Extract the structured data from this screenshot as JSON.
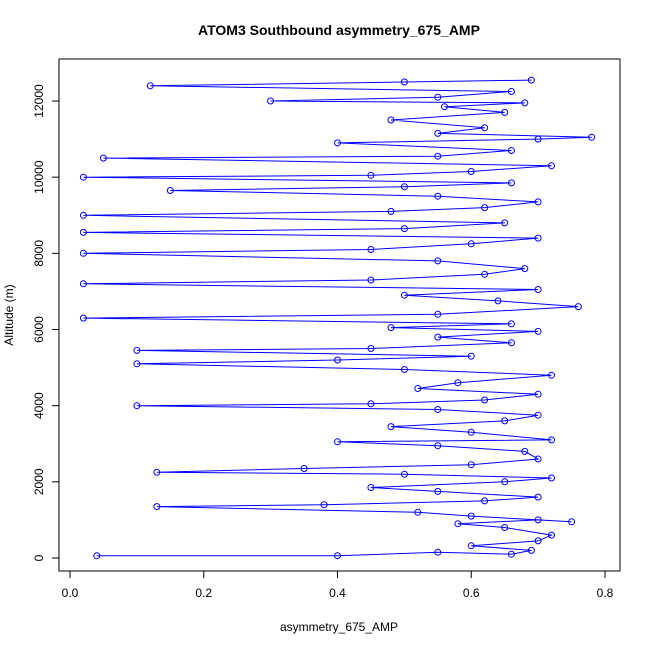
{
  "chart_data": {
    "type": "scatter",
    "title": "ATOM3 Southbound asymmetry_675_AMP",
    "xlabel": "asymmetry_675_AMP",
    "ylabel": "Altitude (m)",
    "xlim": [
      0.0,
      0.8
    ],
    "ylim": [
      0,
      12500
    ],
    "x_ticks": [
      0.0,
      0.2,
      0.4,
      0.6,
      0.8
    ],
    "x_tick_labels": [
      "0.0",
      "0.2",
      "0.4",
      "0.6",
      "0.8"
    ],
    "y_ticks": [
      0,
      2000,
      4000,
      6000,
      8000,
      10000,
      12000
    ],
    "y_tick_labels": [
      "0",
      "2000",
      "4000",
      "6000",
      "8000",
      "10000",
      "12000"
    ],
    "grid": false,
    "legend": "none",
    "marker": "open-circle",
    "connected_lines": true,
    "color": "#0000ff",
    "series": [
      {
        "points": [
          [
            0.04,
            60
          ],
          [
            0.4,
            60
          ],
          [
            0.55,
            150
          ],
          [
            0.66,
            100
          ],
          [
            0.69,
            200
          ],
          [
            0.6,
            320
          ],
          [
            0.7,
            450
          ],
          [
            0.72,
            600
          ],
          [
            0.65,
            800
          ],
          [
            0.58,
            900
          ],
          [
            0.7,
            1000
          ],
          [
            0.75,
            950
          ],
          [
            0.6,
            1100
          ],
          [
            0.52,
            1200
          ],
          [
            0.13,
            1350
          ],
          [
            0.38,
            1400
          ],
          [
            0.62,
            1500
          ],
          [
            0.7,
            1600
          ],
          [
            0.55,
            1750
          ],
          [
            0.45,
            1850
          ],
          [
            0.65,
            2000
          ],
          [
            0.72,
            2100
          ],
          [
            0.5,
            2200
          ],
          [
            0.13,
            2250
          ],
          [
            0.35,
            2350
          ],
          [
            0.6,
            2450
          ],
          [
            0.7,
            2600
          ],
          [
            0.68,
            2800
          ],
          [
            0.55,
            2950
          ],
          [
            0.4,
            3050
          ],
          [
            0.72,
            3100
          ],
          [
            0.6,
            3300
          ],
          [
            0.48,
            3450
          ],
          [
            0.65,
            3600
          ],
          [
            0.7,
            3750
          ],
          [
            0.55,
            3900
          ],
          [
            0.1,
            4000
          ],
          [
            0.45,
            4050
          ],
          [
            0.62,
            4150
          ],
          [
            0.7,
            4300
          ],
          [
            0.52,
            4450
          ],
          [
            0.58,
            4600
          ],
          [
            0.72,
            4800
          ],
          [
            0.5,
            4950
          ],
          [
            0.1,
            5100
          ],
          [
            0.4,
            5200
          ],
          [
            0.6,
            5300
          ],
          [
            0.1,
            5450
          ],
          [
            0.45,
            5500
          ],
          [
            0.66,
            5650
          ],
          [
            0.55,
            5800
          ],
          [
            0.7,
            5950
          ],
          [
            0.48,
            6050
          ],
          [
            0.66,
            6150
          ],
          [
            0.02,
            6300
          ],
          [
            0.55,
            6400
          ],
          [
            0.76,
            6600
          ],
          [
            0.64,
            6750
          ],
          [
            0.5,
            6900
          ],
          [
            0.7,
            7050
          ],
          [
            0.02,
            7200
          ],
          [
            0.45,
            7300
          ],
          [
            0.62,
            7450
          ],
          [
            0.68,
            7600
          ],
          [
            0.55,
            7800
          ],
          [
            0.02,
            8000
          ],
          [
            0.45,
            8100
          ],
          [
            0.6,
            8250
          ],
          [
            0.7,
            8400
          ],
          [
            0.02,
            8550
          ],
          [
            0.5,
            8650
          ],
          [
            0.65,
            8800
          ],
          [
            0.02,
            9000
          ],
          [
            0.48,
            9100
          ],
          [
            0.62,
            9200
          ],
          [
            0.7,
            9350
          ],
          [
            0.55,
            9500
          ],
          [
            0.15,
            9650
          ],
          [
            0.5,
            9750
          ],
          [
            0.66,
            9850
          ],
          [
            0.02,
            10000
          ],
          [
            0.45,
            10050
          ],
          [
            0.6,
            10150
          ],
          [
            0.72,
            10300
          ],
          [
            0.05,
            10500
          ],
          [
            0.55,
            10550
          ],
          [
            0.66,
            10700
          ],
          [
            0.4,
            10900
          ],
          [
            0.7,
            11000
          ],
          [
            0.78,
            11050
          ],
          [
            0.55,
            11150
          ],
          [
            0.62,
            11300
          ],
          [
            0.48,
            11500
          ],
          [
            0.65,
            11700
          ],
          [
            0.56,
            11850
          ],
          [
            0.68,
            11950
          ],
          [
            0.3,
            12000
          ],
          [
            0.55,
            12100
          ],
          [
            0.66,
            12250
          ],
          [
            0.12,
            12400
          ],
          [
            0.5,
            12500
          ],
          [
            0.69,
            12550
          ]
        ]
      }
    ]
  }
}
